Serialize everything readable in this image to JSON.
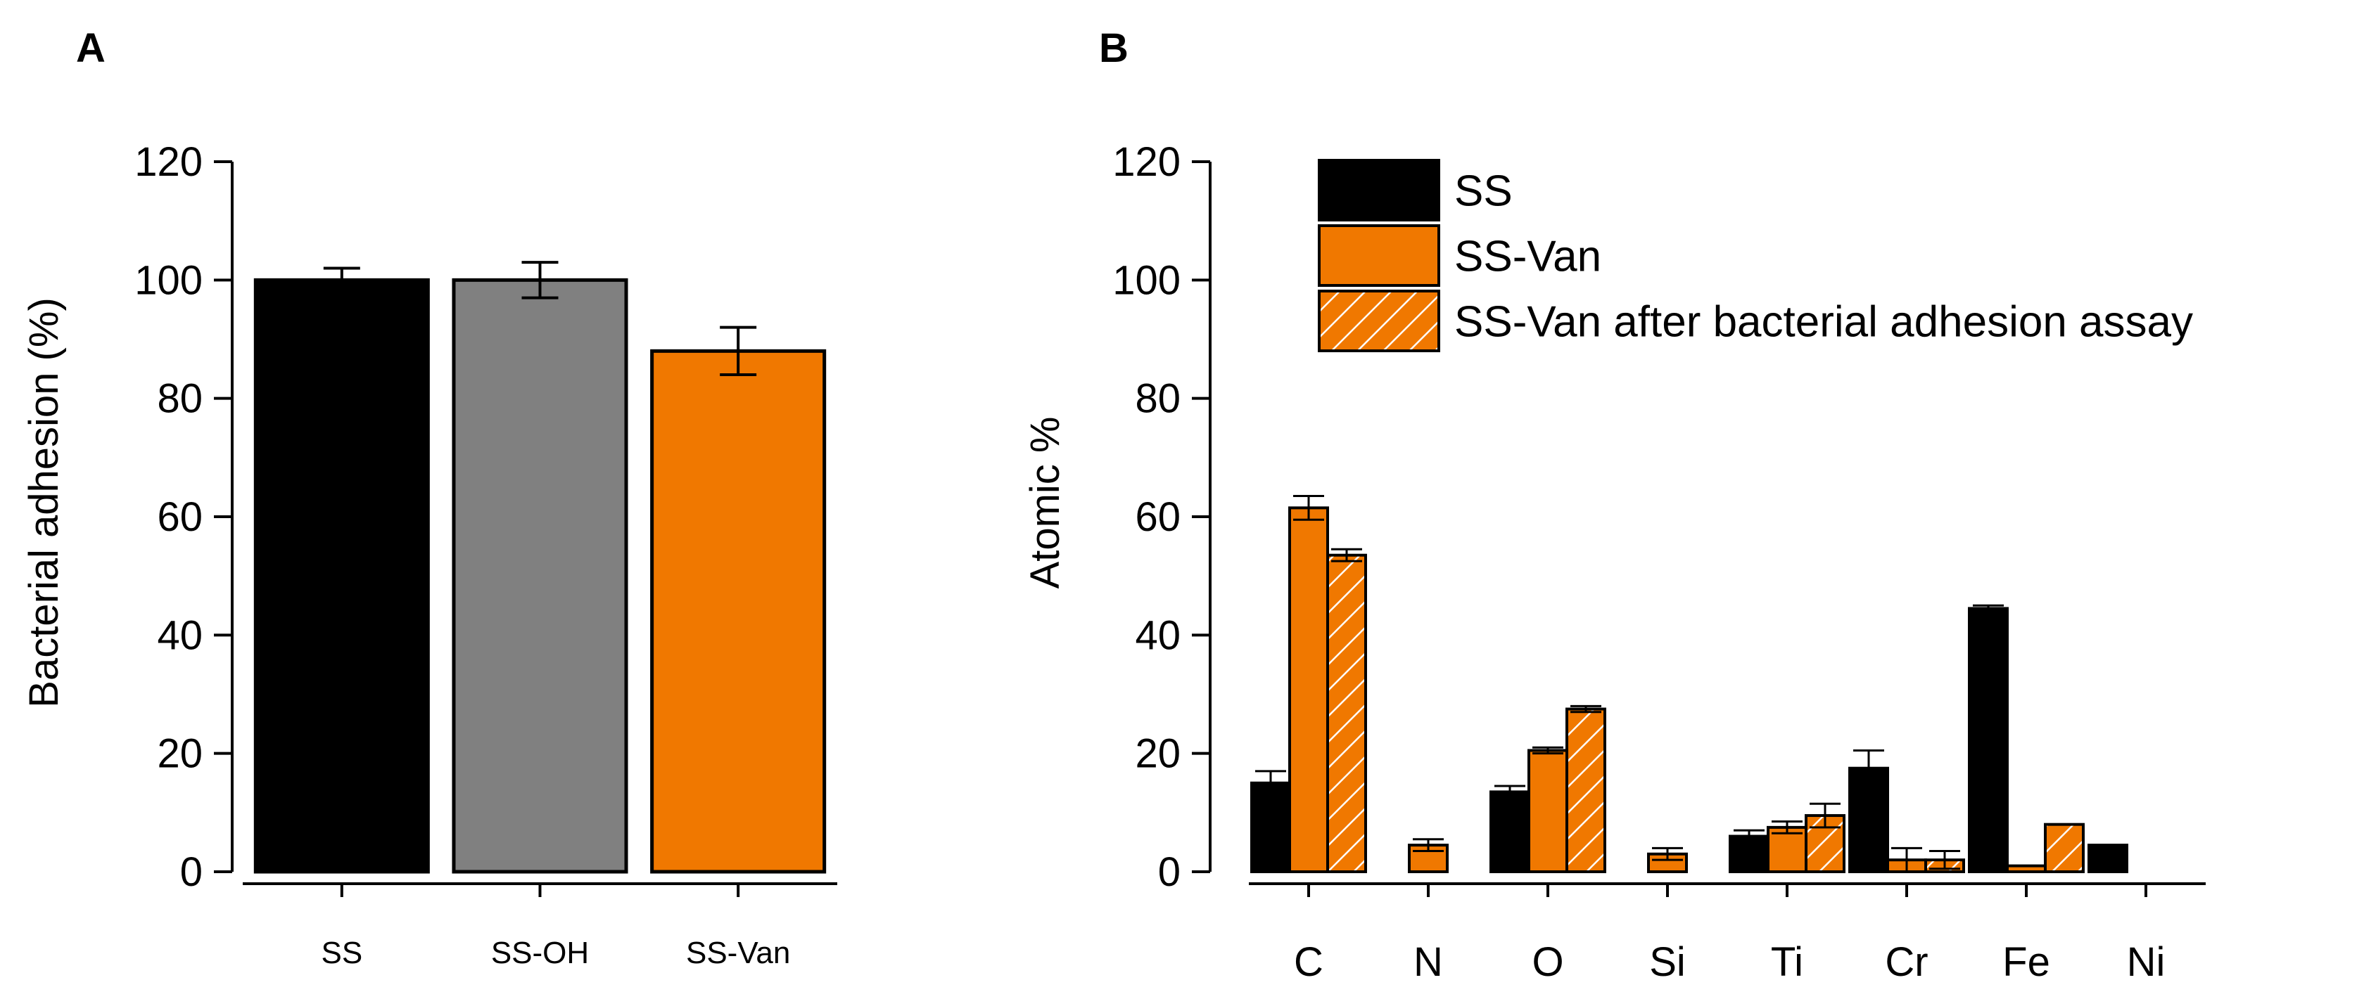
{
  "colors": {
    "black": "#000000",
    "gray": "#808080",
    "orange": "#F07800",
    "hatch": "#FFFFFF"
  },
  "chart_data": [
    {
      "id": "A",
      "panel_label": "A",
      "type": "bar",
      "title": "",
      "xlabel": "",
      "ylabel": "Bacterial adhesion (%)",
      "ylim": [
        0,
        120
      ],
      "yticks": [
        0,
        20,
        40,
        60,
        80,
        100,
        120
      ],
      "grid": false,
      "categories": [
        "SS",
        "SS-OH",
        "SS-Van"
      ],
      "values": [
        100,
        100,
        88
      ],
      "errors": [
        2,
        3,
        4
      ],
      "bar_colors": [
        "black",
        "gray",
        "orange"
      ]
    },
    {
      "id": "B",
      "panel_label": "B",
      "type": "bar",
      "title": "",
      "xlabel": "",
      "ylabel": "Atomic %",
      "ylim": [
        0,
        120
      ],
      "yticks": [
        0,
        20,
        40,
        60,
        80,
        100,
        120
      ],
      "grid": false,
      "legend_position": "top-right",
      "categories": [
        "C",
        "N",
        "O",
        "Si",
        "Ti",
        "Cr",
        "Fe",
        "Ni"
      ],
      "series": [
        {
          "name": "SS",
          "color": "black",
          "hatched": false,
          "values": [
            15,
            0,
            13.5,
            0,
            6,
            17.5,
            44.5,
            4.5
          ],
          "errors": [
            2,
            0,
            1,
            0,
            1,
            3,
            0.5,
            0
          ]
        },
        {
          "name": "SS-Van",
          "color": "orange",
          "hatched": false,
          "values": [
            61.5,
            4.5,
            20.5,
            3,
            7.5,
            2,
            1,
            0
          ],
          "errors": [
            2,
            1,
            0.5,
            1,
            1,
            2,
            0,
            0
          ]
        },
        {
          "name": "SS-Van after bacterial adhesion assay",
          "color": "orange",
          "hatched": true,
          "values": [
            53.5,
            0,
            27.5,
            0,
            9.5,
            2,
            8,
            0
          ],
          "errors": [
            1,
            0,
            0.5,
            0,
            2,
            1.5,
            0,
            0
          ]
        }
      ]
    }
  ]
}
